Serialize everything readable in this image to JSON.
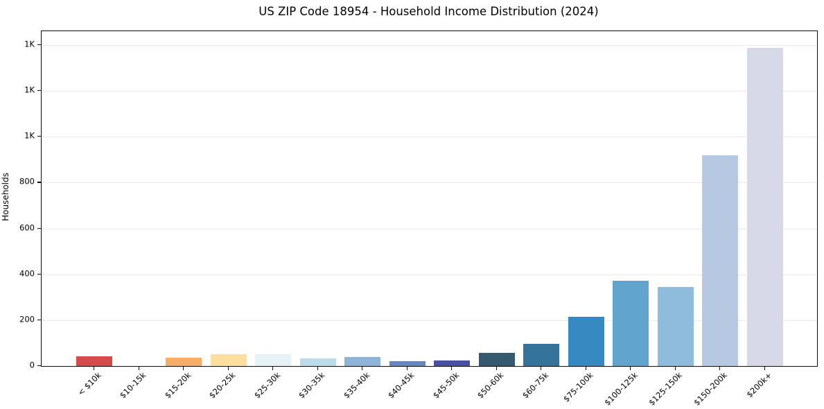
{
  "chart_data": {
    "type": "bar",
    "title": "US ZIP Code 18954 - Household Income Distribution (2024)",
    "xlabel": "",
    "ylabel": "Households",
    "categories": [
      "< $10k",
      "$10-15k",
      "$15-20k",
      "$20-25k",
      "$25-30k",
      "$30-35k",
      "$35-40k",
      "$40-45k",
      "$45-50k",
      "$50-60k",
      "$60-75k",
      "$75-100k",
      "$100-125k",
      "$125-150k",
      "$150-200k",
      "$200k+"
    ],
    "values": [
      42,
      0,
      36,
      52,
      51,
      33,
      38,
      20,
      23,
      58,
      97,
      214,
      371,
      345,
      919,
      1387
    ],
    "bar_colors": [
      "#d34b4b",
      "#e8784f",
      "#f6ad68",
      "#fcdf9e",
      "#e7f2f7",
      "#bcdcea",
      "#8db3d6",
      "#6787c1",
      "#4a50a1",
      "#35596e",
      "#36739a",
      "#3789c1",
      "#61a5ce",
      "#8fbcdc",
      "#b7c9e2",
      "#d8d9e8"
    ],
    "ylim": [
      0,
      1460
    ],
    "yticks": {
      "values": [
        0,
        200,
        400,
        600,
        800,
        1000,
        1200,
        1400
      ],
      "labels": [
        "0",
        "200",
        "400",
        "600",
        "800",
        "1K",
        "1K",
        "1K"
      ]
    },
    "grid": "horizontal",
    "legend": "none",
    "background_color": "#ffffff",
    "gridline_color": "#e9e9e9",
    "axis_color": "#0a0a0a"
  }
}
